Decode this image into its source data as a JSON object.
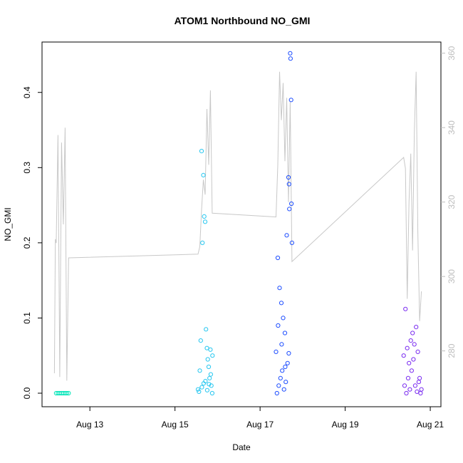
{
  "chart_data": {
    "type": "scatter",
    "title": "ATOM1 Northbound NO_GMI",
    "xlabel": "Date",
    "ylabel": "NO_GMI",
    "xlim": [
      "2022-08-11T21:00",
      "2022-08-21T06:00"
    ],
    "ylim": [
      -0.018,
      0.467
    ],
    "y2lim": [
      265,
      363
    ],
    "x_ticks": [
      {
        "value": "2022-08-13T00:00",
        "label": "Aug 13"
      },
      {
        "value": "2022-08-15T00:00",
        "label": "Aug 15"
      },
      {
        "value": "2022-08-17T00:00",
        "label": "Aug 17"
      },
      {
        "value": "2022-08-19T00:00",
        "label": "Aug 19"
      },
      {
        "value": "2022-08-21T00:00",
        "label": "Aug 21"
      }
    ],
    "y_ticks": [
      0.0,
      0.1,
      0.2,
      0.3,
      0.4
    ],
    "y_tick_labels": [
      "0.0",
      "0.1",
      "0.2",
      "0.3",
      "0.4"
    ],
    "y2_ticks": [
      280,
      300,
      320,
      340,
      360
    ],
    "y2_tick_labels": [
      "280",
      "300",
      "320",
      "340",
      "360"
    ],
    "grid": false,
    "legend": "none",
    "colors": {
      "flight1": "#00e5b8",
      "flight2": "#27c7f0",
      "flight3": "#1f4fff",
      "flight4": "#7a2cf0",
      "line": "#c8c8c8",
      "right_axis": "#bdbdbd"
    },
    "points": [
      {
        "series": 0,
        "x": [
          "2022-08-12T05:00",
          "2022-08-12T06:00",
          "2022-08-12T07:00",
          "2022-08-12T08:00",
          "2022-08-12T09:00",
          "2022-08-12T10:00",
          "2022-08-12T11:00",
          "2022-08-12T12:00"
        ],
        "y": [
          0.0,
          0.0,
          0.0,
          0.0,
          0.0,
          0.0,
          0.0,
          0.0
        ]
      },
      {
        "series": 1,
        "x": [
          "2022-08-15T13:00",
          "2022-08-15T14:00",
          "2022-08-15T14:30",
          "2022-08-15T15:00",
          "2022-08-15T15:30",
          "2022-08-15T16:00",
          "2022-08-15T16:30",
          "2022-08-15T17:00",
          "2022-08-15T17:30",
          "2022-08-15T18:00",
          "2022-08-15T18:30",
          "2022-08-15T19:00",
          "2022-08-15T19:30",
          "2022-08-15T20:00",
          "2022-08-15T20:30",
          "2022-08-15T21:00",
          "2022-08-15T13:30",
          "2022-08-15T15:10",
          "2022-08-15T16:10",
          "2022-08-15T17:10",
          "2022-08-15T18:10",
          "2022-08-15T19:10",
          "2022-08-15T20:10",
          "2022-08-15T21:10"
        ],
        "y": [
          0.005,
          0.03,
          0.07,
          0.322,
          0.2,
          0.29,
          0.235,
          0.228,
          0.085,
          0.06,
          0.045,
          0.035,
          0.02,
          0.058,
          0.01,
          0.0,
          0.002,
          0.008,
          0.013,
          0.016,
          0.004,
          0.012,
          0.025,
          0.05
        ]
      },
      {
        "series": 2,
        "x": [
          "2022-08-17T09:00",
          "2022-08-17T10:00",
          "2022-08-17T11:00",
          "2022-08-17T12:00",
          "2022-08-17T13:00",
          "2022-08-17T14:00",
          "2022-08-17T15:00",
          "2022-08-17T16:00",
          "2022-08-17T16:30",
          "2022-08-17T17:00",
          "2022-08-17T17:30",
          "2022-08-17T18:00",
          "2022-08-17T09:30",
          "2022-08-17T10:30",
          "2022-08-17T11:30",
          "2022-08-17T12:30",
          "2022-08-17T13:30",
          "2022-08-17T14:30",
          "2022-08-17T15:30",
          "2022-08-17T16:10",
          "2022-08-17T17:10",
          "2022-08-17T17:40",
          "2022-08-17T10:10",
          "2022-08-17T12:10",
          "2022-08-17T14:10",
          "2022-08-17T16:20"
        ],
        "y": [
          0.055,
          0.18,
          0.14,
          0.12,
          0.1,
          0.08,
          0.21,
          0.287,
          0.245,
          0.452,
          0.39,
          0.2,
          0.0,
          0.01,
          0.02,
          0.03,
          0.005,
          0.015,
          0.04,
          0.053,
          0.445,
          0.252,
          0.09,
          0.065,
          0.035,
          0.278
        ]
      },
      {
        "series": 3,
        "x": [
          "2022-08-20T09:00",
          "2022-08-20T10:00",
          "2022-08-20T11:00",
          "2022-08-20T12:00",
          "2022-08-20T13:00",
          "2022-08-20T14:00",
          "2022-08-20T15:00",
          "2022-08-20T16:00",
          "2022-08-20T17:00",
          "2022-08-20T18:00",
          "2022-08-20T19:00",
          "2022-08-20T09:30",
          "2022-08-20T10:30",
          "2022-08-20T11:30",
          "2022-08-20T12:30",
          "2022-08-20T13:30",
          "2022-08-20T14:30",
          "2022-08-20T15:30",
          "2022-08-20T16:30",
          "2022-08-20T17:30",
          "2022-08-20T18:30"
        ],
        "y": [
          0.05,
          0.112,
          0.06,
          0.04,
          0.07,
          0.08,
          0.065,
          0.088,
          0.055,
          0.02,
          0.005,
          0.01,
          0.0,
          0.02,
          0.005,
          0.03,
          0.045,
          0.01,
          0.002,
          0.015,
          0.0
        ]
      }
    ],
    "line_series": {
      "x": [
        "2022-08-12T04:00",
        "2022-08-12T04:30",
        "2022-08-12T05:00",
        "2022-08-12T06:00",
        "2022-08-12T07:00",
        "2022-08-12T08:00",
        "2022-08-12T09:00",
        "2022-08-12T10:00",
        "2022-08-12T11:00",
        "2022-08-12T12:00",
        "2022-08-15T13:00",
        "2022-08-15T14:00",
        "2022-08-15T15:00",
        "2022-08-15T16:00",
        "2022-08-15T17:00",
        "2022-08-15T18:00",
        "2022-08-15T19:00",
        "2022-08-15T20:00",
        "2022-08-15T21:00",
        "2022-08-17T09:00",
        "2022-08-17T10:00",
        "2022-08-17T11:00",
        "2022-08-17T12:00",
        "2022-08-17T13:00",
        "2022-08-17T14:00",
        "2022-08-17T15:00",
        "2022-08-17T16:00",
        "2022-08-17T17:00",
        "2022-08-17T18:00",
        "2022-08-20T09:00",
        "2022-08-20T10:00",
        "2022-08-20T11:00",
        "2022-08-20T12:00",
        "2022-08-20T13:00",
        "2022-08-20T14:00",
        "2022-08-20T15:00",
        "2022-08-20T16:00",
        "2022-08-20T17:00",
        "2022-08-20T18:00",
        "2022-08-20T19:00"
      ],
      "y": [
        274,
        310,
        309,
        338,
        273,
        336,
        314,
        340,
        272,
        305,
        306,
        308,
        318,
        326,
        322,
        345,
        330,
        350,
        317,
        316,
        330,
        355,
        342,
        352,
        331,
        348,
        320,
        347,
        304,
        332,
        329,
        294,
        320,
        333,
        307,
        339,
        355,
        312,
        288,
        296
      ]
    }
  }
}
